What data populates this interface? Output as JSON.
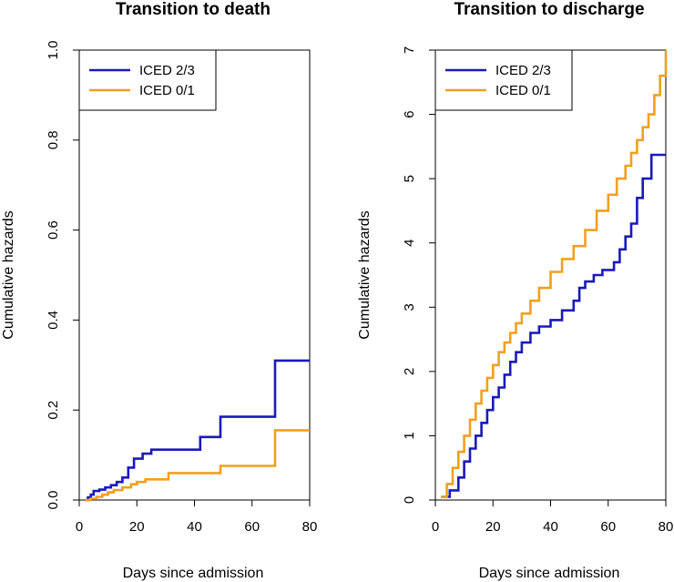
{
  "chart_data": [
    {
      "type": "line",
      "step": true,
      "title": "Transition to death",
      "xlabel": "Days since admission",
      "ylabel": "Cumulative hazards",
      "xlim": [
        0,
        80
      ],
      "ylim": [
        0,
        1.0
      ],
      "xticks": [
        0,
        20,
        40,
        60,
        80
      ],
      "xtick_labels": [
        "0",
        "20",
        "40",
        "60",
        "80"
      ],
      "yticks": [
        0.0,
        0.2,
        0.4,
        0.6,
        0.8,
        1.0
      ],
      "ytick_labels": [
        "0.0",
        "0.2",
        "0.4",
        "0.6",
        "0.8",
        "1.0"
      ],
      "legend_position": "top-left",
      "series": [
        {
          "name": "ICED 2/3",
          "color": "#1a1ab8",
          "x": [
            2,
            3,
            4,
            5,
            7,
            9,
            11,
            13,
            15,
            17,
            19,
            22,
            25,
            42,
            49,
            68,
            80
          ],
          "y": [
            0,
            0.006,
            0.012,
            0.02,
            0.023,
            0.028,
            0.033,
            0.04,
            0.05,
            0.072,
            0.092,
            0.103,
            0.112,
            0.14,
            0.185,
            0.31,
            0.31
          ]
        },
        {
          "name": "ICED 0/1",
          "color": "#f0a020",
          "x": [
            2,
            4,
            6,
            8,
            10,
            12,
            15,
            18,
            20,
            23,
            31,
            49,
            68,
            80
          ],
          "y": [
            0,
            0.003,
            0.007,
            0.012,
            0.017,
            0.022,
            0.028,
            0.035,
            0.04,
            0.046,
            0.06,
            0.076,
            0.155,
            0.155
          ]
        }
      ]
    },
    {
      "type": "line",
      "step": true,
      "title": "Transition to discharge",
      "xlabel": "Days since admission",
      "ylabel": "Cumulative hazards",
      "xlim": [
        0,
        80
      ],
      "ylim": [
        0,
        7
      ],
      "xticks": [
        0,
        20,
        40,
        60,
        80
      ],
      "xtick_labels": [
        "0",
        "20",
        "40",
        "60",
        "80"
      ],
      "yticks": [
        0,
        1,
        2,
        3,
        4,
        5,
        6,
        7
      ],
      "ytick_labels": [
        "0",
        "1",
        "2",
        "3",
        "4",
        "5",
        "6",
        "7"
      ],
      "legend_position": "top-left",
      "series": [
        {
          "name": "ICED 2/3",
          "color": "#1a1ab8",
          "x": [
            2,
            5,
            8,
            10,
            12,
            14,
            16,
            18,
            20,
            22,
            24,
            26,
            28,
            30,
            33,
            36,
            40,
            44,
            48,
            50,
            52,
            55,
            58,
            62,
            64,
            66,
            68,
            70,
            72,
            75,
            80
          ],
          "y": [
            0.05,
            0.15,
            0.35,
            0.6,
            0.8,
            1.0,
            1.2,
            1.4,
            1.6,
            1.75,
            1.95,
            2.15,
            2.3,
            2.45,
            2.6,
            2.7,
            2.8,
            2.95,
            3.1,
            3.3,
            3.4,
            3.5,
            3.58,
            3.7,
            3.9,
            4.1,
            4.3,
            4.7,
            5.0,
            5.37,
            5.37
          ]
        },
        {
          "name": "ICED 0/1",
          "color": "#f0a020",
          "x": [
            2,
            4,
            6,
            8,
            10,
            12,
            14,
            16,
            18,
            20,
            22,
            24,
            26,
            28,
            30,
            33,
            36,
            40,
            44,
            48,
            52,
            56,
            60,
            63,
            66,
            68,
            70,
            72,
            74,
            76,
            78,
            80
          ],
          "y": [
            0.05,
            0.25,
            0.5,
            0.75,
            1.0,
            1.25,
            1.5,
            1.7,
            1.9,
            2.1,
            2.3,
            2.45,
            2.6,
            2.75,
            2.9,
            3.1,
            3.3,
            3.55,
            3.75,
            3.95,
            4.2,
            4.5,
            4.75,
            5.0,
            5.2,
            5.4,
            5.6,
            5.8,
            6.0,
            6.3,
            6.6,
            7.0
          ]
        }
      ]
    }
  ]
}
